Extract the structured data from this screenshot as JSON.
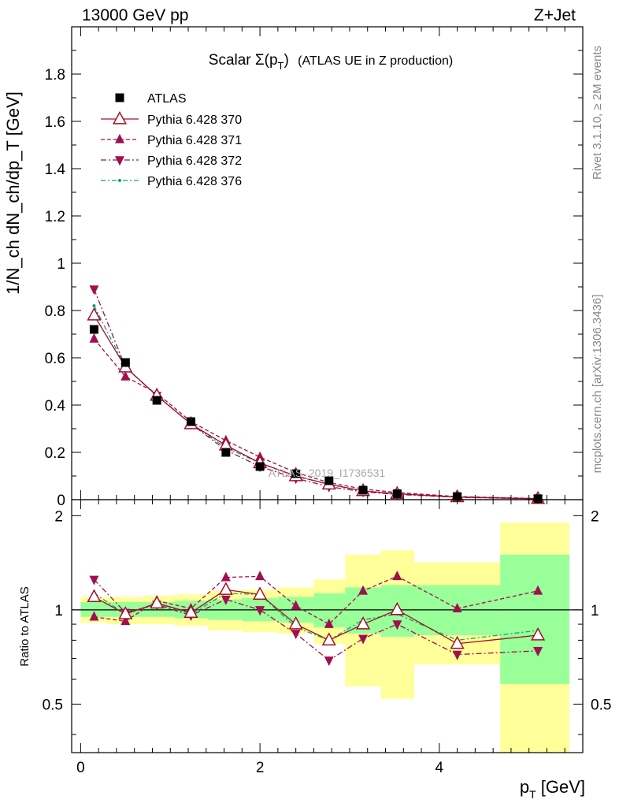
{
  "header": {
    "energy": "13000 GeV pp",
    "process": "Z+Jet"
  },
  "side_labels": {
    "rivet": "Rivet 3.1.10, ≥ 2M events",
    "mcplots": "mcplots.cern.ch [arXiv:1306.3436]"
  },
  "watermark": "ATLAS_2019_I1736531",
  "colors": {
    "atlas": "#000000",
    "p370": "#a0102a",
    "p371": "#a01050",
    "p372": "#a01050",
    "p376": "#10a080",
    "band_outer": "#ffff99",
    "band_inner": "#99ff99"
  },
  "chart_data": [
    {
      "type": "line",
      "title_main": "Scalar Σ(p",
      "title_sub": "T",
      "title_close": ")",
      "title_tail": "(ATLAS UE in Z production)",
      "ylabel": "1/N_ch dN_ch/dp_T [GeV]",
      "ylim": [
        0,
        2.0
      ],
      "xlim": [
        -0.1,
        5.6
      ],
      "yticks": [
        "0",
        "0.2",
        "0.4",
        "0.6",
        "0.8",
        "1",
        "1.2",
        "1.4",
        "1.6",
        "1.8"
      ],
      "legend_position": "top-left",
      "x": [
        0.15,
        0.5,
        0.85,
        1.23,
        1.62,
        2.0,
        2.4,
        2.77,
        3.15,
        3.53,
        4.2,
        5.1
      ],
      "series": [
        {
          "name": "ATLAS",
          "values": [
            0.72,
            0.58,
            0.42,
            0.33,
            0.2,
            0.14,
            0.11,
            0.08,
            0.04,
            0.025,
            0.013,
            0.004
          ]
        },
        {
          "name": "Pythia 6.428 370",
          "values": [
            0.78,
            0.56,
            0.44,
            0.32,
            0.23,
            0.155,
            0.1,
            0.065,
            0.037,
            0.025,
            0.011,
            0.004
          ]
        },
        {
          "name": "Pythia 6.428 371",
          "values": [
            0.68,
            0.52,
            0.45,
            0.33,
            0.25,
            0.18,
            0.115,
            0.072,
            0.045,
            0.03,
            0.013,
            0.005
          ]
        },
        {
          "name": "Pythia 6.428 372",
          "values": [
            0.89,
            0.56,
            0.44,
            0.32,
            0.21,
            0.14,
            0.09,
            0.055,
            0.033,
            0.022,
            0.01,
            0.003
          ]
        },
        {
          "name": "Pythia 6.428 376",
          "values": [
            0.82,
            0.56,
            0.44,
            0.32,
            0.22,
            0.155,
            0.1,
            0.064,
            0.037,
            0.024,
            0.011,
            0.004
          ]
        }
      ]
    },
    {
      "type": "line",
      "ylabel": "Ratio to ATLAS",
      "ylim": [
        0.35,
        2.25
      ],
      "xlim": [
        -0.1,
        5.6
      ],
      "xlabel_main": "p",
      "xlabel_sub": "T",
      "xlabel_tail": " [GeV]",
      "xticks": [
        "0",
        "2",
        "4"
      ],
      "yticks_left": [
        "0.5",
        "1",
        "2"
      ],
      "yticks_right": [
        "0.5",
        "1",
        "2"
      ],
      "bands": [
        {
          "x0": 0.0,
          "x1": 0.3,
          "inner": [
            0.95,
            1.06
          ],
          "outer": [
            0.91,
            1.1
          ]
        },
        {
          "x0": 0.3,
          "x1": 0.7,
          "inner": [
            0.95,
            1.06
          ],
          "outer": [
            0.9,
            1.1
          ]
        },
        {
          "x0": 0.7,
          "x1": 1.05,
          "inner": [
            0.95,
            1.06
          ],
          "outer": [
            0.9,
            1.11
          ]
        },
        {
          "x0": 1.05,
          "x1": 1.42,
          "inner": [
            0.94,
            1.07
          ],
          "outer": [
            0.89,
            1.12
          ]
        },
        {
          "x0": 1.42,
          "x1": 1.8,
          "inner": [
            0.93,
            1.08
          ],
          "outer": [
            0.86,
            1.15
          ]
        },
        {
          "x0": 1.8,
          "x1": 2.2,
          "inner": [
            0.92,
            1.09
          ],
          "outer": [
            0.85,
            1.16
          ]
        },
        {
          "x0": 2.2,
          "x1": 2.6,
          "inner": [
            0.91,
            1.1
          ],
          "outer": [
            0.84,
            1.18
          ]
        },
        {
          "x0": 2.6,
          "x1": 2.95,
          "inner": [
            0.88,
            1.13
          ],
          "outer": [
            0.78,
            1.25
          ]
        },
        {
          "x0": 2.95,
          "x1": 3.35,
          "inner": [
            0.84,
            1.18
          ],
          "outer": [
            0.57,
            1.5
          ]
        },
        {
          "x0": 3.35,
          "x1": 3.72,
          "inner": [
            0.82,
            1.2
          ],
          "outer": [
            0.52,
            1.55
          ]
        },
        {
          "x0": 3.72,
          "x1": 4.68,
          "inner": [
            0.83,
            1.2
          ],
          "outer": [
            0.67,
            1.42
          ]
        },
        {
          "x0": 4.68,
          "x1": 5.45,
          "inner": [
            0.58,
            1.5
          ],
          "outer": [
            0.35,
            1.9
          ]
        }
      ],
      "x": [
        0.15,
        0.5,
        0.85,
        1.23,
        1.62,
        2.0,
        2.4,
        2.77,
        3.15,
        3.53,
        4.2,
        5.1
      ],
      "series": [
        {
          "name": "Pythia 6.428 370",
          "values": [
            1.1,
            0.97,
            1.05,
            0.98,
            1.16,
            1.12,
            0.9,
            0.8,
            0.9,
            1.0,
            0.78,
            0.83
          ]
        },
        {
          "name": "Pythia 6.428 371",
          "values": [
            0.95,
            0.92,
            1.07,
            1.01,
            1.27,
            1.28,
            1.03,
            0.9,
            1.15,
            1.28,
            1.01,
            1.15
          ]
        },
        {
          "name": "Pythia 6.428 372",
          "values": [
            1.25,
            0.98,
            1.04,
            0.96,
            1.08,
            1.0,
            0.84,
            0.69,
            0.81,
            0.9,
            0.72,
            0.74
          ]
        },
        {
          "name": "Pythia 6.428 376",
          "values": [
            1.13,
            0.97,
            1.05,
            0.97,
            1.13,
            1.12,
            0.88,
            0.8,
            0.93,
            0.97,
            0.8,
            0.86
          ]
        }
      ]
    }
  ]
}
